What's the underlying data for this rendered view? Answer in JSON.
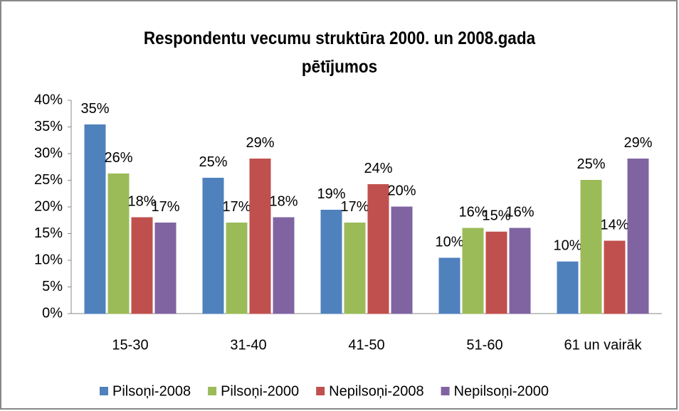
{
  "chart_data": {
    "type": "bar",
    "title": "Respondentu vecumu struktūra 2000. un 2008.gada pētījumos",
    "categories": [
      "15-30",
      "31-40",
      "41-50",
      "51-60",
      "61 un vairāk"
    ],
    "series": [
      {
        "name": "Pilsoņi-2008",
        "color": "#4f81bd",
        "values": [
          35.4,
          25.4,
          19.4,
          10.4,
          9.7
        ],
        "value_labels": [
          "35%",
          "25%",
          "19%",
          "10%",
          "10%"
        ]
      },
      {
        "name": "Pilsoņi-2000",
        "color": "#9bbb59",
        "values": [
          26.2,
          17,
          17,
          16,
          25
        ],
        "value_labels": [
          "26%",
          "17%",
          "17%",
          "16%",
          "25%"
        ]
      },
      {
        "name": "Nepilsoņi-2008",
        "color": "#c0504d",
        "values": [
          18,
          29,
          24.2,
          15.3,
          13.6
        ],
        "value_labels": [
          "18%",
          "29%",
          "24%",
          "15%",
          "14%"
        ]
      },
      {
        "name": "Nepilsoņi-2000",
        "color": "#8064a2",
        "values": [
          17,
          18,
          20,
          16,
          29
        ],
        "value_labels": [
          "17%",
          "18%",
          "20%",
          "16%",
          "29%"
        ]
      }
    ],
    "ylim": [
      0,
      40
    ],
    "yticks": [
      {
        "value": 0,
        "label": "0%"
      },
      {
        "value": 5,
        "label": "5%"
      },
      {
        "value": 10,
        "label": "10%"
      },
      {
        "value": 15,
        "label": "15%"
      },
      {
        "value": 20,
        "label": "20%"
      },
      {
        "value": 25,
        "label": "25%"
      },
      {
        "value": 30,
        "label": "30%"
      },
      {
        "value": 35,
        "label": "35%"
      },
      {
        "value": 40,
        "label": "40%"
      }
    ],
    "legend": "bottom"
  }
}
